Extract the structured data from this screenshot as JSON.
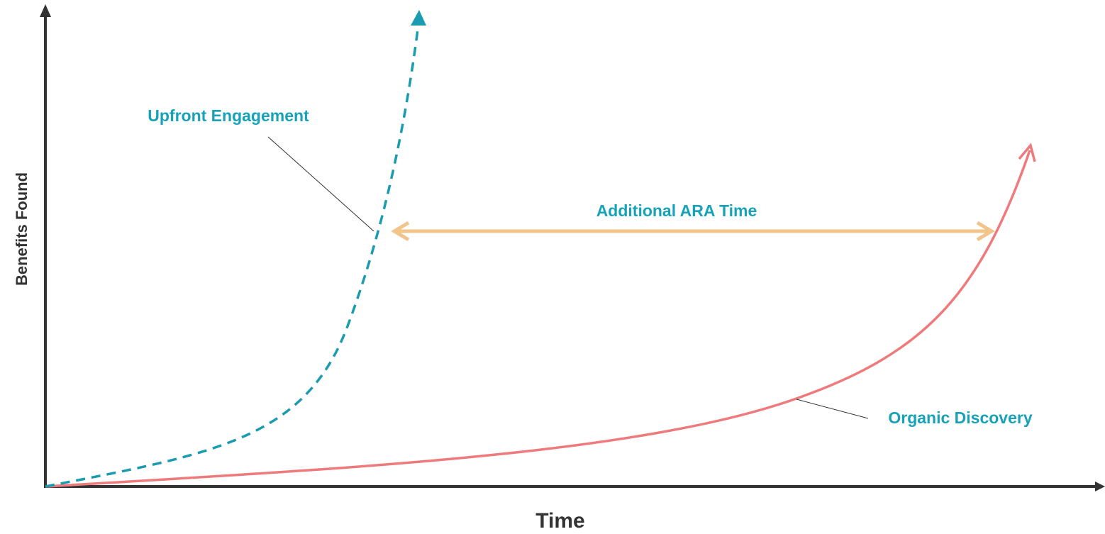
{
  "diagram": {
    "x_axis_label": "Time",
    "y_axis_label": "Benefits Found",
    "curves": {
      "upfront": {
        "label": "Upfront Engagement",
        "style": "dashed",
        "color": "#1a9bb0"
      },
      "organic": {
        "label": "Organic Discovery",
        "style": "solid",
        "color": "#ee7a7c"
      }
    },
    "gap": {
      "label": "Additional ARA Time",
      "color": "#f2c48a"
    },
    "colors": {
      "axis": "#333333",
      "label_accent": "#17a2b8",
      "leader_line": "#333333"
    }
  }
}
